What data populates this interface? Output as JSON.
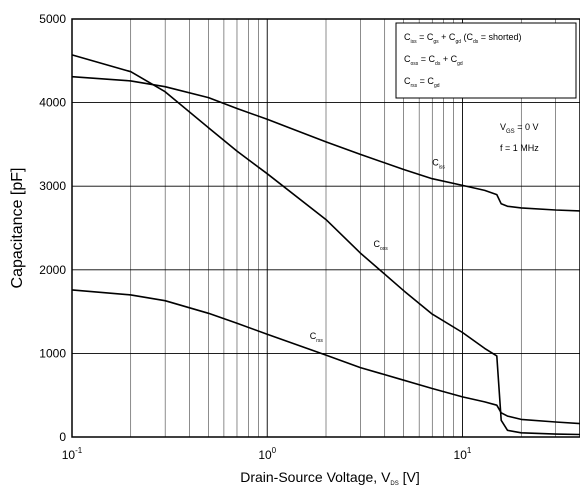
{
  "chart_data": {
    "type": "line",
    "title": "",
    "x_scale": "log",
    "xlim": [
      0.1,
      40
    ],
    "ylim": [
      0,
      5000
    ],
    "grid": true,
    "xlabel": {
      "base": "Drain-Source Voltage, V",
      "sub": "DS",
      "unit": " [V]"
    },
    "ylabel": "Capacitance [pF]",
    "x_ticks": [
      {
        "base": "10",
        "exp": "-1",
        "value": 0.1
      },
      {
        "base": "10",
        "exp": "0",
        "value": 1
      },
      {
        "base": "10",
        "exp": "1",
        "value": 10
      }
    ],
    "y_ticks": [
      {
        "label": "0",
        "value": 0
      },
      {
        "label": "1000",
        "value": 1000
      },
      {
        "label": "2000",
        "value": 2000
      },
      {
        "label": "3000",
        "value": 3000
      },
      {
        "label": "4000",
        "value": 4000
      },
      {
        "label": "5000",
        "value": 5000
      }
    ],
    "series": [
      {
        "name": "C_iss",
        "label_main": "C",
        "label_sub": "iss",
        "label_at": [
          7.0,
          3250
        ],
        "points": [
          [
            0.1,
            4310
          ],
          [
            0.2,
            4260
          ],
          [
            0.3,
            4190
          ],
          [
            0.5,
            4060
          ],
          [
            0.7,
            3930
          ],
          [
            1,
            3800
          ],
          [
            2,
            3530
          ],
          [
            3,
            3380
          ],
          [
            5,
            3200
          ],
          [
            7,
            3090
          ],
          [
            10,
            3010
          ],
          [
            13,
            2950
          ],
          [
            15,
            2900
          ],
          [
            15.8,
            2790
          ],
          [
            17,
            2760
          ],
          [
            20,
            2740
          ],
          [
            30,
            2715
          ],
          [
            40,
            2705
          ]
        ]
      },
      {
        "name": "C_oss",
        "label_main": "C",
        "label_sub": "oss",
        "label_at": [
          3.5,
          2270
        ],
        "points": [
          [
            0.1,
            4570
          ],
          [
            0.2,
            4370
          ],
          [
            0.3,
            4130
          ],
          [
            0.5,
            3700
          ],
          [
            0.7,
            3420
          ],
          [
            1,
            3150
          ],
          [
            2,
            2600
          ],
          [
            3,
            2200
          ],
          [
            5,
            1750
          ],
          [
            7,
            1470
          ],
          [
            10,
            1250
          ],
          [
            13,
            1060
          ],
          [
            15,
            970
          ],
          [
            15.8,
            200
          ],
          [
            17,
            80
          ],
          [
            20,
            50
          ],
          [
            30,
            35
          ],
          [
            40,
            30
          ]
        ]
      },
      {
        "name": "C_rss",
        "label_main": "C",
        "label_sub": "rss",
        "label_at": [
          1.65,
          1170
        ],
        "points": [
          [
            0.1,
            1760
          ],
          [
            0.2,
            1700
          ],
          [
            0.3,
            1630
          ],
          [
            0.5,
            1480
          ],
          [
            0.7,
            1360
          ],
          [
            1,
            1230
          ],
          [
            2,
            980
          ],
          [
            3,
            830
          ],
          [
            5,
            680
          ],
          [
            7,
            580
          ],
          [
            10,
            480
          ],
          [
            13,
            420
          ],
          [
            15,
            380
          ],
          [
            15.8,
            290
          ],
          [
            17,
            250
          ],
          [
            20,
            210
          ],
          [
            30,
            180
          ],
          [
            40,
            160
          ]
        ]
      }
    ],
    "legend_box": {
      "line1": [
        [
          "C",
          ""
        ],
        [
          "iss",
          ".sub"
        ],
        [
          " = C",
          ""
        ],
        [
          "gs",
          ".sub"
        ],
        [
          " + C",
          ""
        ],
        [
          "gd",
          ".sub"
        ],
        [
          " (C",
          ""
        ],
        [
          "ds",
          ".sub"
        ],
        [
          " = shorted)",
          ""
        ]
      ],
      "line2": [
        [
          "C",
          ""
        ],
        [
          "oss",
          ".sub"
        ],
        [
          " = C",
          ""
        ],
        [
          "ds",
          ".sub"
        ],
        [
          " + C",
          ""
        ],
        [
          "gd",
          ".sub"
        ]
      ],
      "line3": [
        [
          "C",
          ""
        ],
        [
          "rss",
          ".sub"
        ],
        [
          " = C",
          ""
        ],
        [
          "gd",
          ".sub"
        ]
      ]
    },
    "conditions": {
      "vgs": {
        "base": "V",
        "sub": "GS",
        "rest": " = 0 V"
      },
      "freq": "f = 1 MHz"
    }
  }
}
